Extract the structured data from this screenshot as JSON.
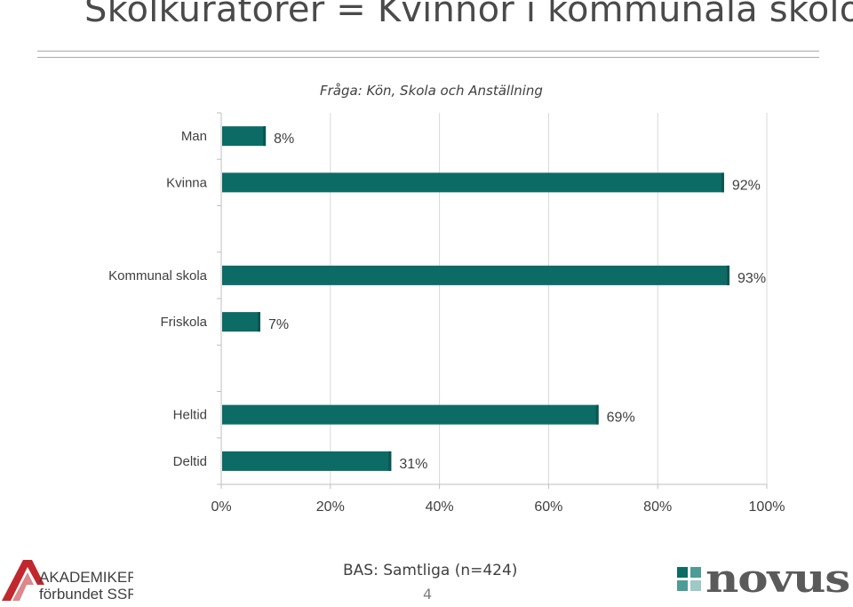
{
  "slide": {
    "title": "Skolkuratorer = Kvinnor i kommunala skolor",
    "base_note": "BAS: Samtliga (n=424)",
    "page_number": "4"
  },
  "logos": {
    "left_line1": "AKADEMIKER",
    "left_line2": "förbundet SSR",
    "right_text": "novus"
  },
  "colors": {
    "bar": "#0d6b66",
    "bar_dark": "#0a5651",
    "grid": "#d9d9d9",
    "text": "#3f3f3f",
    "logo_red": "#c0282d",
    "logo_teal": "#4e9c96"
  },
  "chart_data": {
    "type": "bar",
    "orientation": "horizontal",
    "title": "Fråga: Kön, Skola och Anställning",
    "categories": [
      "Man",
      "Kvinna",
      "Kommunal skola",
      "Friskola",
      "Heltid",
      "Deltid"
    ],
    "groups": [
      [
        "Man",
        "Kvinna"
      ],
      [
        "Kommunal skola",
        "Friskola"
      ],
      [
        "Heltid",
        "Deltid"
      ]
    ],
    "values": [
      8,
      92,
      93,
      7,
      69,
      31
    ],
    "value_labels": [
      "8%",
      "92%",
      "93%",
      "7%",
      "69%",
      "31%"
    ],
    "xlim": [
      0,
      100
    ],
    "xticks": [
      0,
      20,
      40,
      60,
      80,
      100
    ],
    "xtick_labels": [
      "0%",
      "20%",
      "40%",
      "60%",
      "80%",
      "100%"
    ],
    "grid": true,
    "legend": "none",
    "xlabel": "",
    "ylabel": ""
  }
}
